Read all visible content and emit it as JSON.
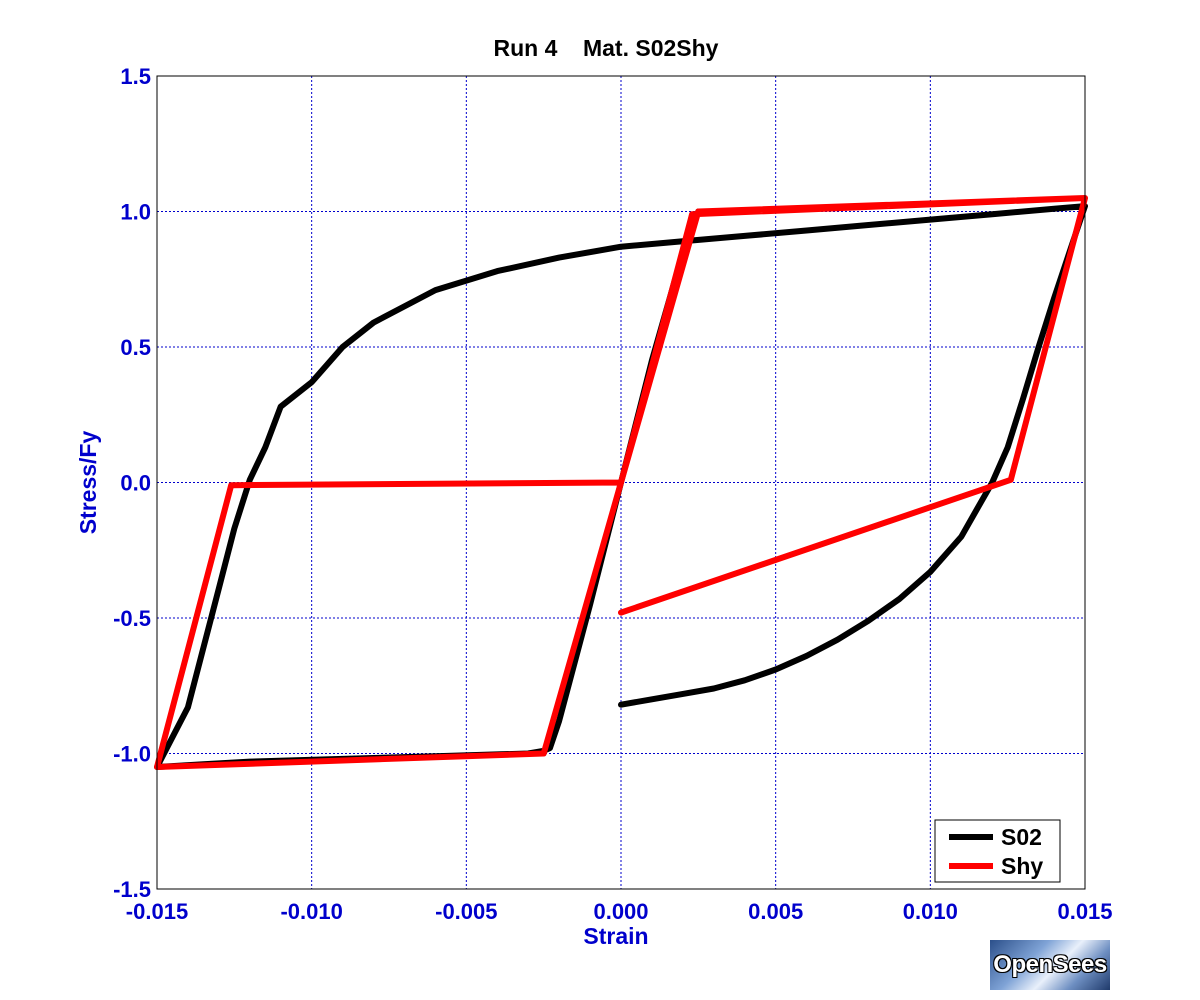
{
  "chart_data": {
    "type": "line",
    "title": "Run 4    Mat. S02Shy",
    "xlabel": "Strain",
    "ylabel": "Stress/Fy",
    "xlim": [
      -0.015,
      0.015
    ],
    "ylim": [
      -1.5,
      1.5
    ],
    "xticks": [
      -0.015,
      -0.01,
      -0.005,
      0.0,
      0.005,
      0.01,
      0.015
    ],
    "xtick_labels": [
      "-0.015",
      "-0.010",
      "-0.005",
      "0.000",
      "0.005",
      "0.010",
      "0.015"
    ],
    "yticks": [
      1.5,
      1.0,
      0.5,
      0.0,
      -0.5,
      -1.0,
      -1.5
    ],
    "ytick_labels": [
      "1.5",
      "1.0",
      "0.5",
      "0.0",
      "-0.5",
      "-1.0",
      "-1.5"
    ],
    "grid": true,
    "legend_position": "bottom-right",
    "colors": {
      "axis": "#0000cc",
      "grid": "#0000cc",
      "title": "#000000"
    },
    "series": [
      {
        "name": "S02",
        "color": "#000000",
        "x": [
          0.0,
          0.001,
          0.002,
          0.003,
          0.004,
          0.005,
          0.006,
          0.007,
          0.008,
          0.009,
          0.01,
          0.011,
          0.0115,
          0.012,
          0.0125,
          0.013,
          0.0135,
          0.014,
          0.0145,
          0.015,
          0.014,
          0.012,
          0.01,
          0.008,
          0.006,
          0.004,
          0.002,
          0.0,
          -0.002,
          -0.004,
          -0.006,
          -0.008,
          -0.009,
          -0.01,
          -0.011,
          -0.0115,
          -0.012,
          -0.0125,
          -0.013,
          -0.0135,
          -0.014,
          -0.015,
          -0.0135,
          -0.012,
          -0.009,
          -0.006,
          -0.003,
          -0.0025,
          -0.0023,
          -0.002,
          -0.001,
          0.0,
          0.001,
          0.002,
          0.0025
        ],
        "y": [
          -0.82,
          -0.8,
          -0.78,
          -0.76,
          -0.73,
          -0.69,
          -0.64,
          -0.58,
          -0.51,
          -0.43,
          -0.33,
          -0.2,
          -0.1,
          0.0,
          0.13,
          0.31,
          0.5,
          0.68,
          0.85,
          1.02,
          1.01,
          0.99,
          0.97,
          0.95,
          0.93,
          0.91,
          0.89,
          0.87,
          0.83,
          0.78,
          0.71,
          0.59,
          0.5,
          0.37,
          0.28,
          0.13,
          0.01,
          -0.17,
          -0.39,
          -0.61,
          -0.83,
          -1.05,
          -1.04,
          -1.03,
          -1.02,
          -1.01,
          -1.0,
          -0.99,
          -0.98,
          -0.88,
          -0.45,
          0.0,
          0.45,
          0.85,
          1.0
        ]
      },
      {
        "name": "Shy",
        "color": "#ff0000",
        "x": [
          0.0,
          0.0126,
          0.015,
          0.0025,
          0.0,
          -0.0126,
          -0.015,
          -0.0025,
          0.0,
          0.0023,
          0.015,
          0.0126,
          0.0
        ],
        "y": [
          -0.48,
          0.01,
          1.05,
          1.0,
          0.0,
          -0.01,
          -1.05,
          -1.0,
          0.0,
          0.99,
          1.05,
          0.01,
          -0.48
        ]
      }
    ]
  },
  "logo_text": "OpenSees"
}
